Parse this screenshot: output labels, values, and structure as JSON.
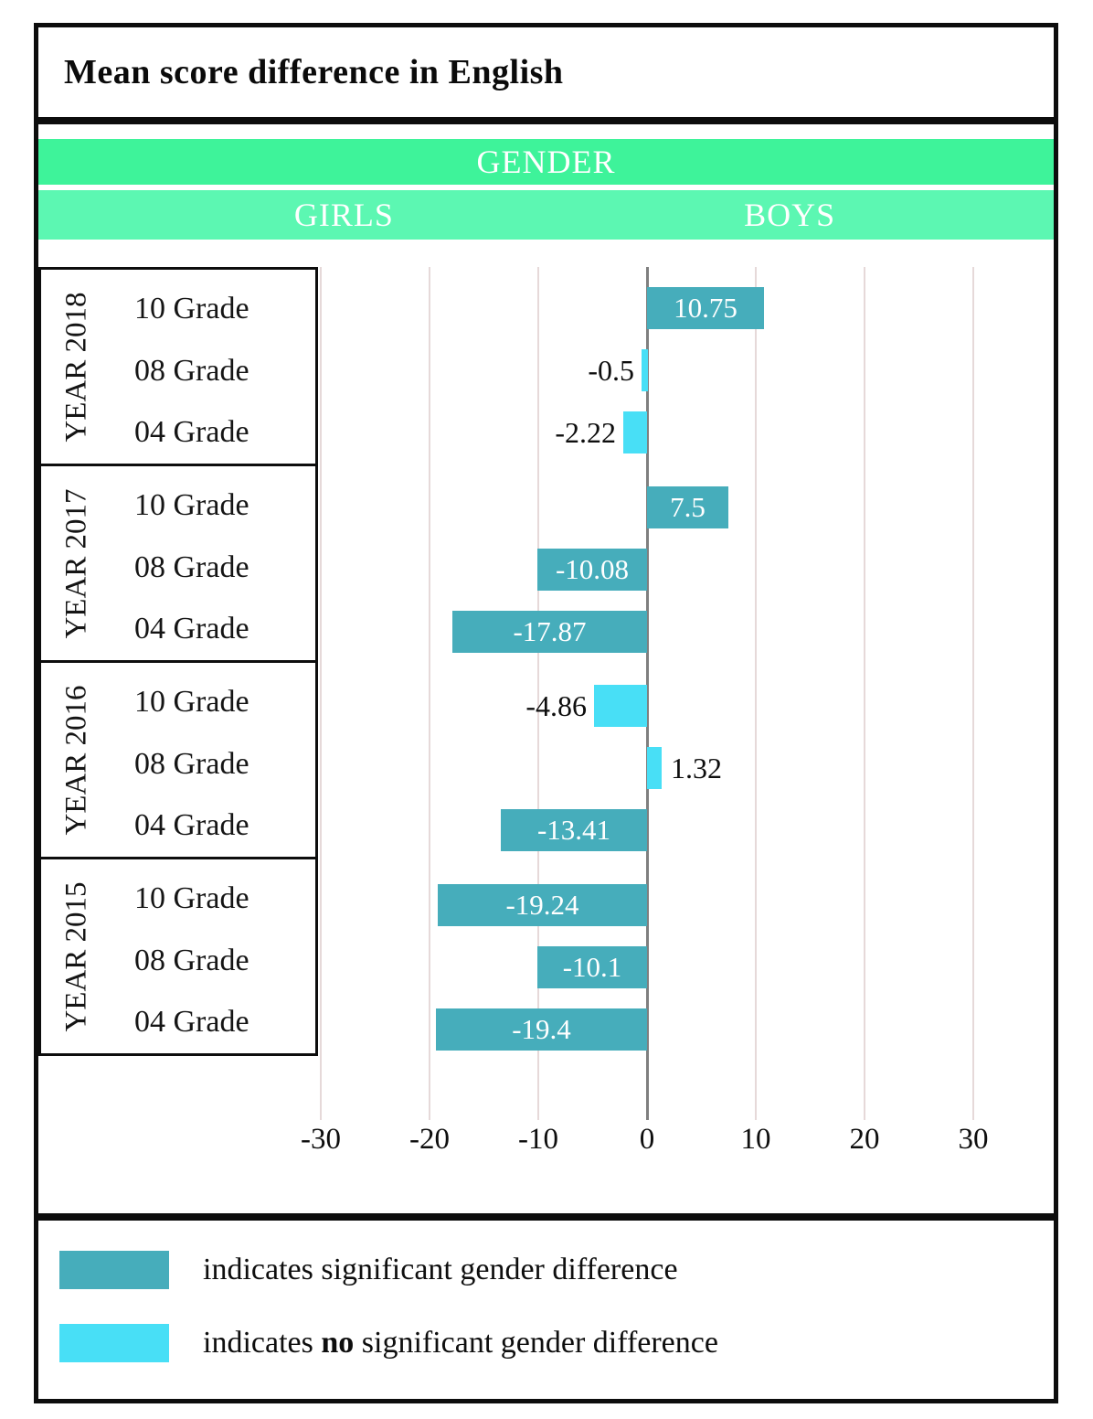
{
  "title": "Mean score difference in English",
  "header": {
    "gender_label": "GENDER",
    "girls_label": "GIRLS",
    "boys_label": "BOYS"
  },
  "colors": {
    "significant": "#46adbb",
    "not_significant": "#48dff6",
    "band_gender": "#3ef39a",
    "band_sides": "#5cf7b2",
    "gridline": "#e6d9d9",
    "zero_line": "#7f7f7f"
  },
  "chart_data": {
    "type": "bar",
    "orientation": "horizontal",
    "title": "Mean score difference in English",
    "xlim": [
      -30,
      30
    ],
    "ticks": [
      -30,
      -20,
      -10,
      0,
      10,
      20,
      30
    ],
    "grid": true,
    "groups": [
      {
        "year": "YEAR 2018",
        "rows": [
          {
            "grade": "10 Grade",
            "value": 10.75,
            "label": "10.75",
            "significant": true
          },
          {
            "grade": "08 Grade",
            "value": -0.5,
            "label": "-0.5",
            "significant": false
          },
          {
            "grade": "04 Grade",
            "value": -2.22,
            "label": "-2.22",
            "significant": false
          }
        ]
      },
      {
        "year": "YEAR 2017",
        "rows": [
          {
            "grade": "10 Grade",
            "value": 7.5,
            "label": "7.5",
            "significant": true
          },
          {
            "grade": "08 Grade",
            "value": -10.08,
            "label": "-10.08",
            "significant": true
          },
          {
            "grade": "04 Grade",
            "value": -17.87,
            "label": "-17.87",
            "significant": true
          }
        ]
      },
      {
        "year": "YEAR 2016",
        "rows": [
          {
            "grade": "10 Grade",
            "value": -4.86,
            "label": "-4.86",
            "significant": false
          },
          {
            "grade": "08 Grade",
            "value": 1.32,
            "label": "1.32",
            "significant": false
          },
          {
            "grade": "04 Grade",
            "value": -13.41,
            "label": "-13.41",
            "significant": true
          }
        ]
      },
      {
        "year": "YEAR 2015",
        "rows": [
          {
            "grade": "10 Grade",
            "value": -19.24,
            "label": "-19.24",
            "significant": true
          },
          {
            "grade": "08 Grade",
            "value": -10.1,
            "label": "-10.1",
            "significant": true
          },
          {
            "grade": "04 Grade",
            "value": -19.4,
            "label": "-19.4",
            "significant": true
          }
        ]
      }
    ]
  },
  "legend": {
    "significant_text": "indicates significant gender difference",
    "not_significant_prefix": "indicates ",
    "not_significant_bold": "no",
    "not_significant_suffix": " significant gender difference"
  }
}
